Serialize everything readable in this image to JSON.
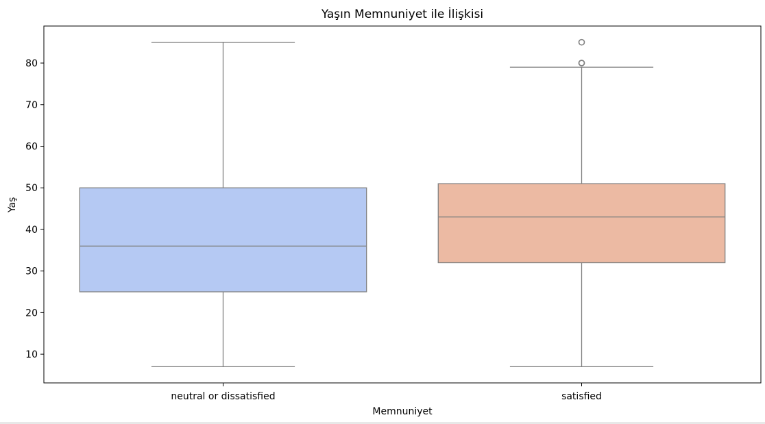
{
  "chart_data": {
    "type": "box",
    "title": "Yaşın Memnuniyet ile İlişkisi",
    "xlabel": "Memnuniyet",
    "ylabel": "Yaş",
    "ylim": [
      3.1,
      88.9
    ],
    "yticks": [
      10,
      20,
      30,
      40,
      50,
      60,
      70,
      80
    ],
    "grid": false,
    "categories": [
      "neutral or dissatisfied",
      "satisfied"
    ],
    "boxes": [
      {
        "category": "neutral or dissatisfied",
        "whisker_low": 7,
        "q1": 25,
        "median": 36,
        "q3": 50,
        "whisker_high": 85,
        "outliers": [],
        "color": "#b5c9f3"
      },
      {
        "category": "satisfied",
        "whisker_low": 7,
        "q1": 32,
        "median": 43,
        "q3": 51,
        "whisker_high": 79,
        "outliers": [
          80,
          80,
          85
        ],
        "color": "#ecbaa3"
      }
    ],
    "line_color": "#808080",
    "spine_color": "#000000"
  }
}
